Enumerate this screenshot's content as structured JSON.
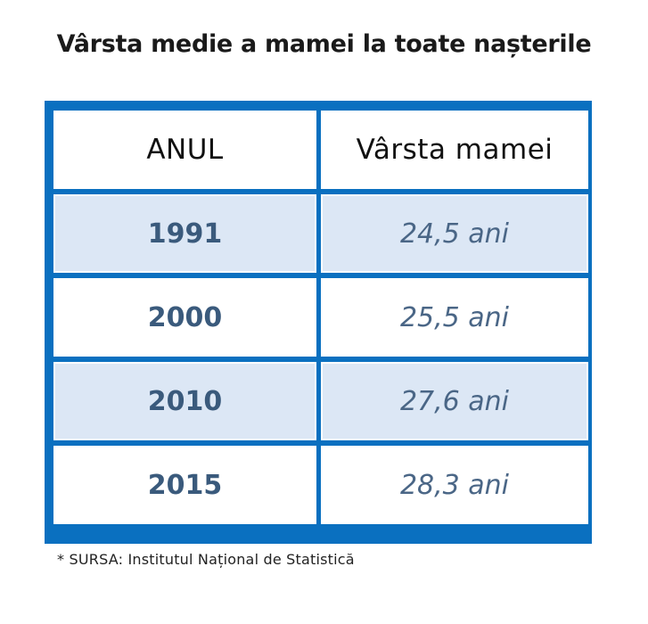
{
  "title": "Vârsta medie a mamei la toate nașterile",
  "table": {
    "headers": [
      "ANUL",
      "Vârsta mamei"
    ],
    "rows": [
      {
        "year": "1991",
        "age": "24,5 ani"
      },
      {
        "year": "2000",
        "age": "25,5 ani"
      },
      {
        "year": "2010",
        "age": "27,6 ani"
      },
      {
        "year": "2015",
        "age": "28,3 ani"
      }
    ]
  },
  "footnote": "* SURSA: Institutul Național de Statistică",
  "colors": {
    "border": "#0a70c0",
    "shaded_row": "#dce7f5",
    "value_text": "#3a5a7c"
  }
}
